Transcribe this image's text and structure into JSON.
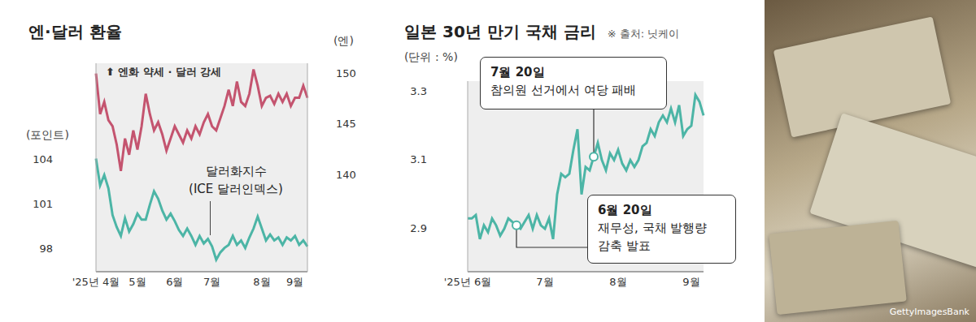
{
  "chart_data": [
    {
      "type": "line",
      "title": "엔·달러 환율",
      "annotation": "⬆ 엔화 약세 · 달러 강세",
      "ylabel": "(포인트)",
      "y2label": "(엔)",
      "categories": [
        "'25년 4월",
        null,
        null,
        null,
        null,
        null,
        null,
        null,
        null,
        null,
        "5월",
        null,
        null,
        null,
        null,
        null,
        null,
        null,
        null,
        "6월",
        null,
        null,
        null,
        null,
        null,
        null,
        null,
        null,
        "7월",
        null,
        null,
        null,
        null,
        null,
        null,
        null,
        null,
        null,
        null,
        null,
        "8월",
        null,
        null,
        null,
        null,
        null,
        null,
        null,
        "9월",
        null,
        null,
        null
      ],
      "series": [
        {
          "color": "#c4546f",
          "axis": "y2",
          "values": [
            150,
            146,
            147.2,
            145.4,
            144.8,
            143,
            140.4,
            143.6,
            142,
            144.4,
            142.5,
            144.8,
            148,
            146,
            144.4,
            145.2,
            144,
            142.4,
            143.6,
            144.8,
            144,
            143.2,
            144.4,
            143.6,
            144.8,
            144,
            145.2,
            146,
            144.8,
            144.4,
            145.6,
            146.8,
            148.4,
            146.8,
            149.2,
            147.2,
            146.8,
            148,
            150.4,
            148.8,
            146.8,
            147.6,
            147.8,
            147,
            148,
            147.2,
            148,
            146.8,
            147.6,
            147.6,
            148.8,
            147.6
          ]
        },
        {
          "name": "달러화지수 (ICE 달러인덱스)",
          "color": "#4cb5a6",
          "values": [
            104.1,
            102.3,
            103,
            102.1,
            100.3,
            99.5,
            98.9,
            100.1,
            99.2,
            99.7,
            100.4,
            100,
            100,
            101,
            101.9,
            101.4,
            100.6,
            100,
            100.4,
            99.9,
            99.3,
            98.9,
            99.4,
            98.9,
            98.3,
            98.9,
            98.4,
            98.7,
            98.2,
            97.3,
            97.8,
            98.1,
            98.3,
            98.9,
            98.3,
            98.6,
            98.1,
            98.8,
            99.4,
            100.2,
            99.4,
            98.6,
            99,
            98.6,
            98.8,
            98.3,
            98.8,
            98.6,
            98.9,
            98.3,
            98.6,
            98.2
          ]
        }
      ],
      "ylim": [
        96.5,
        110.5
      ],
      "yticks": [
        98,
        101,
        104
      ],
      "y2lim": [
        130.5,
        151
      ],
      "y2ticks": [
        140,
        145,
        150
      ],
      "grid": false
    },
    {
      "type": "line",
      "title": "일본 30년 만기 국채 금리",
      "source": "※ 출처: 닛케이",
      "ylabel": "(단위 : %)",
      "categories": [
        "'25년 6월",
        null,
        null,
        null,
        null,
        null,
        null,
        null,
        null,
        null,
        null,
        null,
        null,
        null,
        null,
        null,
        null,
        null,
        null,
        "7월",
        null,
        null,
        null,
        null,
        null,
        null,
        null,
        null,
        null,
        null,
        null,
        null,
        null,
        null,
        null,
        null,
        null,
        "8월",
        null,
        null,
        null,
        null,
        null,
        null,
        null,
        null,
        null,
        null,
        null,
        null,
        null,
        null,
        null,
        null,
        null,
        "9월",
        null,
        null,
        null
      ],
      "series": [
        {
          "color": "#4cb5a6",
          "values": [
            2.93,
            2.93,
            2.94,
            2.87,
            2.91,
            2.89,
            2.93,
            2.91,
            2.88,
            2.9,
            2.93,
            2.92,
            2.91,
            2.9,
            2.92,
            2.94,
            2.9,
            2.94,
            2.91,
            2.9,
            2.93,
            2.87,
            3.0,
            3.06,
            3.05,
            3.06,
            3.13,
            3.19,
            3.0,
            3.08,
            3.07,
            3.11,
            3.15,
            3.1,
            3.07,
            3.12,
            3.1,
            3.13,
            3.09,
            3.07,
            3.1,
            3.08,
            3.1,
            3.14,
            3.15,
            3.19,
            3.17,
            3.21,
            3.23,
            3.21,
            3.25,
            3.21,
            3.26,
            3.17,
            3.19,
            3.2,
            3.29,
            3.27,
            3.23
          ]
        }
      ],
      "ylim": [
        2.775,
        3.33
      ],
      "yticks": [
        2.9,
        3.1,
        3.3
      ],
      "annotations": [
        {
          "index": 12,
          "label": "6월 20일",
          "text": [
            "재무성, 국채 발행량",
            "감축 발표"
          ]
        },
        {
          "index": 31,
          "label": "7월 20일",
          "text": [
            "참의원 선거에서 여당 패배"
          ]
        }
      ],
      "grid": false
    }
  ],
  "image_credit": "GettyImagesBank"
}
